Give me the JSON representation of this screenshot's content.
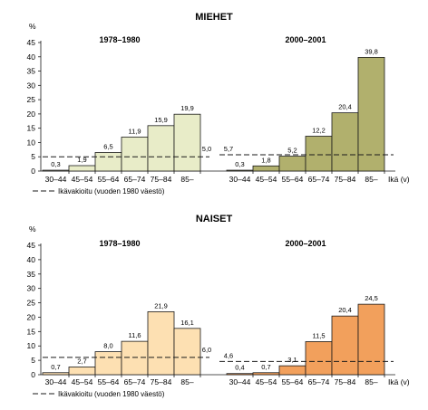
{
  "colors": {
    "men_1978_1980": "#e8ecc8",
    "men_2000_2001": "#b1b06d",
    "women_1978_1980": "#fde0b2",
    "women_2000_2001": "#f2a05c",
    "axis": "#1a1a1a",
    "reference_line": "#1a1a1a"
  },
  "chart_data": [
    {
      "type": "bar",
      "title": "MIEHET",
      "ylabel": "%",
      "ylim": [
        0,
        45
      ],
      "yticks": [
        "0",
        "5",
        "10",
        "15",
        "20",
        "25",
        "30",
        "35",
        "40",
        "45"
      ],
      "x_unit_label": "Ikä (v)",
      "categories": [
        "30–44",
        "45–54",
        "55–64",
        "65–74",
        "75–84",
        "85–"
      ],
      "legend": "Ikävakioitu (vuoden 1980 väestö)",
      "grid": false,
      "series": [
        {
          "name": "1978–1980",
          "values": [
            0.3,
            1.9,
            6.5,
            11.9,
            15.9,
            19.9
          ],
          "labels": [
            "0,3",
            "1,9",
            "6,5",
            "11,9",
            "15,9",
            "19,9"
          ],
          "age_standardized": 5.0,
          "age_standardized_label": "5,0"
        },
        {
          "name": "2000–2001",
          "values": [
            0.3,
            1.8,
            5.2,
            12.2,
            20.4,
            39.8
          ],
          "labels": [
            "0,3",
            "1,8",
            "5,2",
            "12,2",
            "20,4",
            "39,8"
          ],
          "age_standardized": 5.7,
          "age_standardized_label": "5,7"
        }
      ]
    },
    {
      "type": "bar",
      "title": "NAISET",
      "ylabel": "%",
      "ylim": [
        0,
        45
      ],
      "yticks": [
        "0",
        "5",
        "10",
        "15",
        "20",
        "25",
        "30",
        "35",
        "40",
        "45"
      ],
      "x_unit_label": "Ikä (v)",
      "categories": [
        "30–44",
        "45–54",
        "55–64",
        "65–74",
        "75–84",
        "85–"
      ],
      "legend": "Ikävakioitu (vuoden 1980 väestö)",
      "grid": false,
      "series": [
        {
          "name": "1978–1980",
          "values": [
            0.7,
            2.7,
            8.0,
            11.6,
            21.9,
            16.1
          ],
          "labels": [
            "0,7",
            "2,7",
            "8,0",
            "11,6",
            "21,9",
            "16,1"
          ],
          "age_standardized": 6.0,
          "age_standardized_label": "6,0"
        },
        {
          "name": "2000–2001",
          "values": [
            0.4,
            0.7,
            3.1,
            11.5,
            20.4,
            24.5
          ],
          "labels": [
            "0,4",
            "0,7",
            "3,1",
            "11,5",
            "20,4",
            "24,5"
          ],
          "age_standardized": 4.6,
          "age_standardized_label": "4,6"
        }
      ]
    }
  ]
}
